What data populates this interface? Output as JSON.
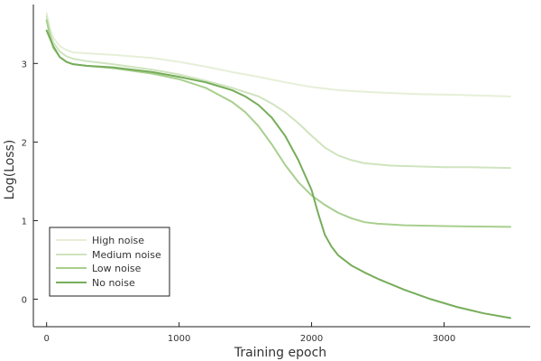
{
  "chart_data": {
    "type": "line",
    "title": "",
    "xlabel": "Training epoch",
    "ylabel": "Log(Loss)",
    "xlim": [
      -100,
      3650
    ],
    "ylim": [
      -0.35,
      3.75
    ],
    "xticks": [
      0,
      1000,
      2000,
      3000
    ],
    "yticks": [
      0,
      1,
      2,
      3
    ],
    "grid": false,
    "legend_position": "bottom-left",
    "series": [
      {
        "name": "High noise",
        "color": "#e6efd8",
        "x": [
          0,
          25,
          50,
          100,
          150,
          200,
          300,
          500,
          800,
          1000,
          1200,
          1400,
          1600,
          1800,
          2000,
          2200,
          2500,
          2800,
          3100,
          3300,
          3500
        ],
        "y": [
          3.64,
          3.45,
          3.33,
          3.22,
          3.17,
          3.14,
          3.13,
          3.11,
          3.07,
          3.02,
          2.96,
          2.89,
          2.83,
          2.76,
          2.7,
          2.66,
          2.63,
          2.61,
          2.6,
          2.59,
          2.58
        ]
      },
      {
        "name": "Medium noise",
        "color": "#cfe4bf",
        "x": [
          0,
          25,
          50,
          100,
          150,
          200,
          300,
          500,
          800,
          1000,
          1200,
          1400,
          1600,
          1700,
          1800,
          1900,
          2000,
          2100,
          2200,
          2300,
          2400,
          2600,
          2800,
          3000,
          3200,
          3500
        ],
        "y": [
          3.6,
          3.4,
          3.27,
          3.15,
          3.09,
          3.06,
          3.03,
          2.99,
          2.92,
          2.86,
          2.78,
          2.69,
          2.58,
          2.49,
          2.38,
          2.24,
          2.08,
          1.93,
          1.83,
          1.77,
          1.73,
          1.7,
          1.69,
          1.68,
          1.68,
          1.67
        ]
      },
      {
        "name": "Low noise",
        "color": "#a8cf8e",
        "x": [
          0,
          25,
          50,
          100,
          150,
          200,
          300,
          500,
          800,
          1000,
          1200,
          1400,
          1500,
          1600,
          1700,
          1800,
          1900,
          2000,
          2100,
          2200,
          2300,
          2400,
          2500,
          2700,
          3000,
          3500
        ],
        "y": [
          3.55,
          3.35,
          3.2,
          3.08,
          3.02,
          2.99,
          2.97,
          2.94,
          2.87,
          2.8,
          2.69,
          2.51,
          2.38,
          2.2,
          1.97,
          1.71,
          1.49,
          1.32,
          1.2,
          1.1,
          1.03,
          0.98,
          0.96,
          0.94,
          0.93,
          0.92
        ]
      },
      {
        "name": "No noise",
        "color": "#77ad5a",
        "x": [
          0,
          25,
          50,
          100,
          150,
          200,
          300,
          500,
          800,
          1000,
          1200,
          1400,
          1500,
          1600,
          1700,
          1800,
          1900,
          2000,
          2050,
          2100,
          2150,
          2200,
          2300,
          2400,
          2500,
          2700,
          2900,
          3100,
          3300,
          3500
        ],
        "y": [
          3.42,
          3.32,
          3.22,
          3.08,
          3.02,
          2.99,
          2.97,
          2.95,
          2.89,
          2.83,
          2.76,
          2.66,
          2.58,
          2.47,
          2.31,
          2.08,
          1.77,
          1.39,
          1.09,
          0.82,
          0.67,
          0.56,
          0.43,
          0.34,
          0.26,
          0.12,
          0.0,
          -0.1,
          -0.18,
          -0.24
        ]
      }
    ]
  }
}
